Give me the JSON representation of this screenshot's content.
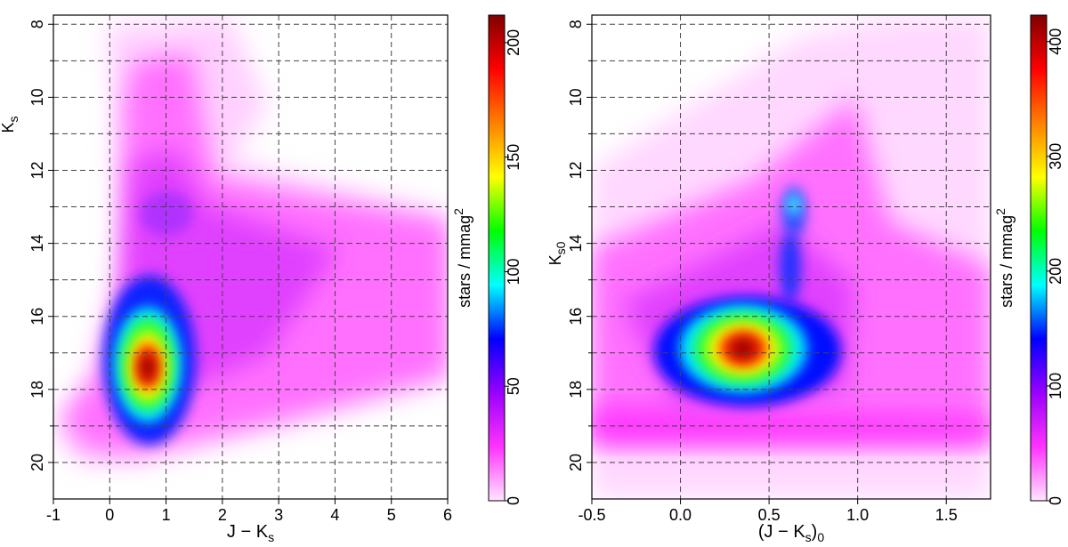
{
  "chart_data": [
    {
      "type": "heatmap",
      "xlabel": {
        "main": "J − K",
        "sub": "s"
      },
      "ylabel": {
        "main": "K",
        "sub": "s"
      },
      "xlim": [
        -1,
        6
      ],
      "xticks": [
        -1,
        0,
        1,
        2,
        3,
        4,
        5,
        6
      ],
      "ylim": [
        21,
        7.75
      ],
      "yticks": [
        8,
        10,
        12,
        14,
        16,
        18,
        20
      ],
      "yminor_grid": [
        9,
        11,
        13,
        15,
        17,
        19
      ],
      "grid": true,
      "colorbar": {
        "lim": [
          0,
          212
        ],
        "ticks": [
          0,
          50,
          100,
          150,
          200
        ],
        "label": {
          "main": "stars / mmag",
          "sup": "2"
        }
      },
      "colormap": [
        "#ffe6ff",
        "#ff33ff",
        "#9900ff",
        "#0000ff",
        "#00ffff",
        "#00ff00",
        "#ffff00",
        "#ff8000",
        "#ff0000",
        "#800000"
      ]
    },
    {
      "type": "heatmap",
      "xlabel": {
        "main": "(J − K",
        "sub": "s",
        "close": ")",
        "sub2": "0"
      },
      "ylabel": {
        "main": "K",
        "sub": "s0"
      },
      "xlim": [
        -0.5,
        1.75
      ],
      "xticks": [
        -0.5,
        {
          "value": 0,
          "label": "0.0"
        },
        0.5,
        {
          "value": 1,
          "label": "1.0"
        },
        1.5
      ],
      "ylim": [
        21,
        7.75
      ],
      "yticks": [
        8,
        10,
        12,
        14,
        16,
        18,
        20
      ],
      "yminor_grid": [
        9,
        11,
        13,
        15,
        17,
        19
      ],
      "grid": true,
      "colorbar": {
        "lim": [
          0,
          423
        ],
        "ticks": [
          0,
          100,
          200,
          300,
          400
        ],
        "label": {
          "main": "stars / mmag",
          "sup": "2"
        }
      },
      "colormap": [
        "#ffe6ff",
        "#ff33ff",
        "#9900ff",
        "#0000ff",
        "#00ffff",
        "#00ff00",
        "#ffff00",
        "#ff8000",
        "#ff0000",
        "#800000"
      ]
    }
  ]
}
